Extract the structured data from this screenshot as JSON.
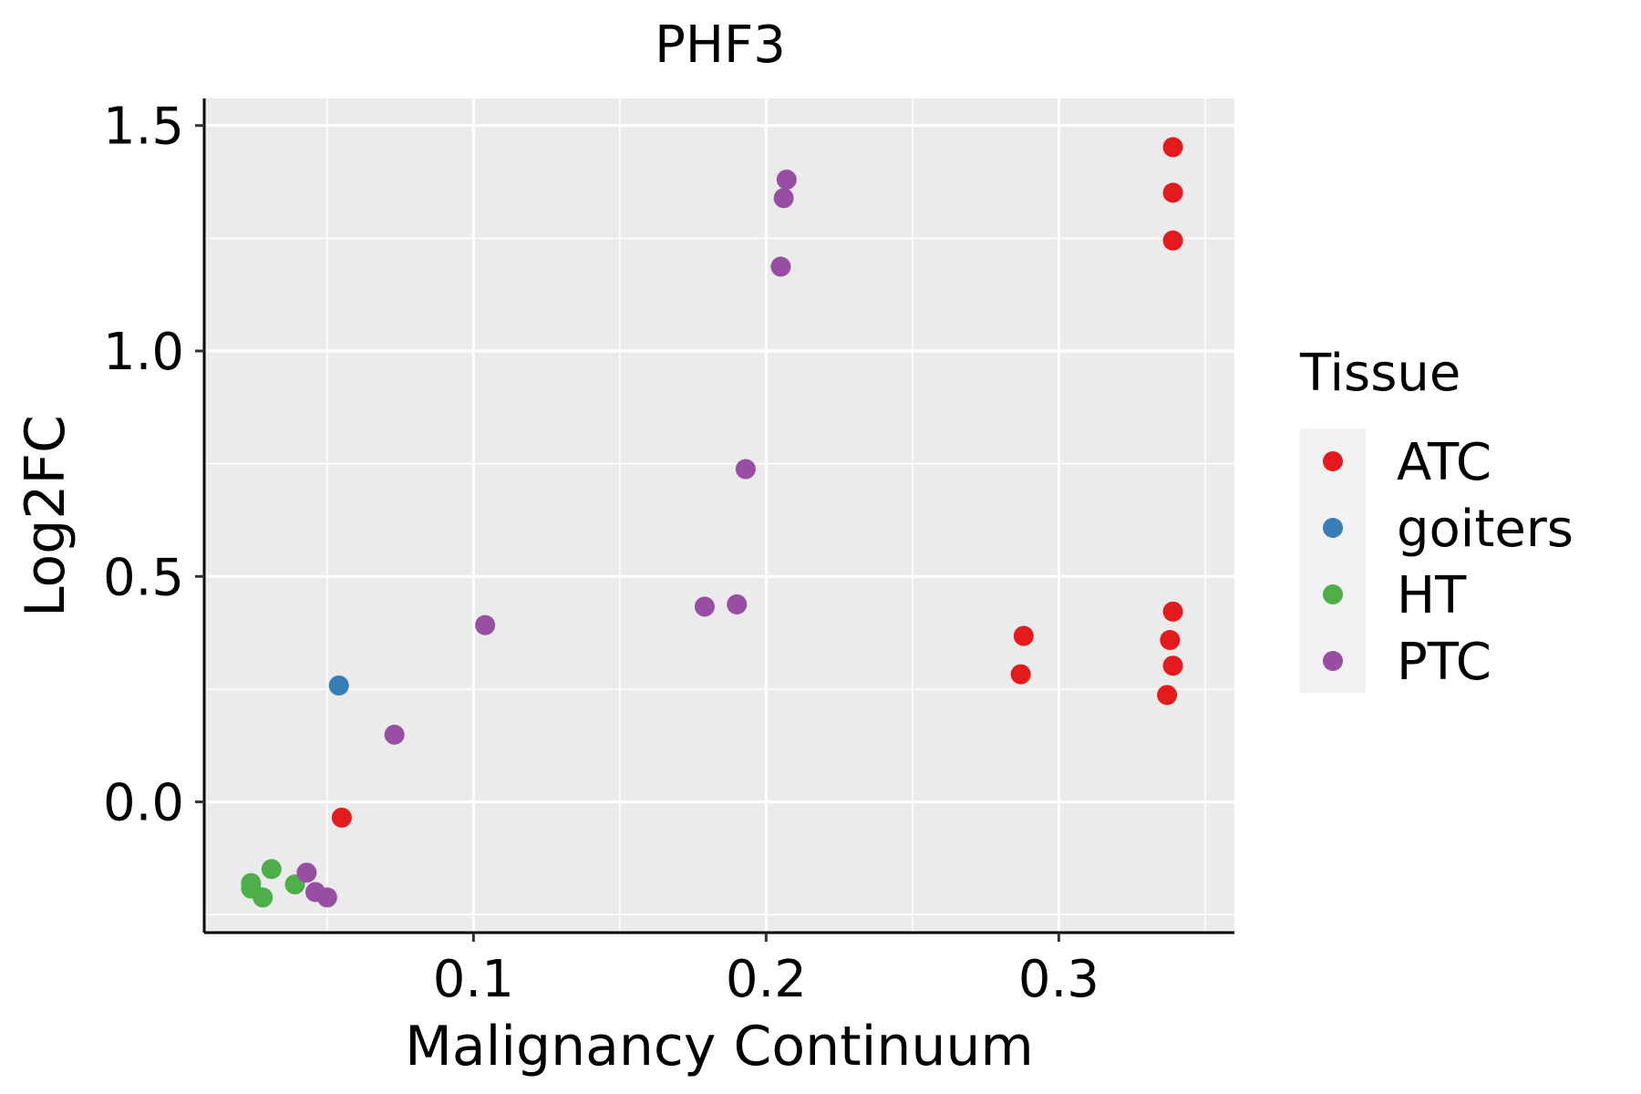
{
  "chart_data": {
    "type": "scatter",
    "title": "PHF3",
    "xlabel": "Malignancy Continuum",
    "ylabel": "Log2FC",
    "xlim": [
      0.008,
      0.36
    ],
    "ylim": [
      -0.29,
      1.56
    ],
    "x_ticks": [
      0.1,
      0.2,
      0.3
    ],
    "x_tick_labels": [
      "0.1",
      "0.2",
      "0.3"
    ],
    "y_ticks": [
      0.0,
      0.5,
      1.0,
      1.5
    ],
    "y_tick_labels": [
      "0.0",
      "0.5",
      "1.0",
      "1.5"
    ],
    "grid": true,
    "legend": {
      "title": "Tissue",
      "position": "right",
      "entries": [
        "ATC",
        "goiters",
        "HT",
        "PTC"
      ]
    },
    "colors": {
      "ATC": "#E41A1C",
      "goiters": "#377EB8",
      "HT": "#4DAF4A",
      "PTC": "#984EA3",
      "panel": "#EBEBEB",
      "grid": "#FFFFFF"
    },
    "series": [
      {
        "name": "ATC",
        "points": [
          {
            "x": 0.055,
            "y": -0.035
          },
          {
            "x": 0.287,
            "y": 0.283
          },
          {
            "x": 0.288,
            "y": 0.368
          },
          {
            "x": 0.337,
            "y": 0.237
          },
          {
            "x": 0.338,
            "y": 0.359
          },
          {
            "x": 0.339,
            "y": 0.302
          },
          {
            "x": 0.339,
            "y": 0.422
          },
          {
            "x": 0.339,
            "y": 1.245
          },
          {
            "x": 0.339,
            "y": 1.351
          },
          {
            "x": 0.339,
            "y": 1.452
          }
        ]
      },
      {
        "name": "goiters",
        "points": [
          {
            "x": 0.054,
            "y": 0.258
          }
        ]
      },
      {
        "name": "HT",
        "points": [
          {
            "x": 0.024,
            "y": -0.18
          },
          {
            "x": 0.024,
            "y": -0.192
          },
          {
            "x": 0.028,
            "y": -0.212
          },
          {
            "x": 0.031,
            "y": -0.149
          },
          {
            "x": 0.039,
            "y": -0.183
          }
        ]
      },
      {
        "name": "PTC",
        "points": [
          {
            "x": 0.043,
            "y": -0.157
          },
          {
            "x": 0.046,
            "y": -0.2
          },
          {
            "x": 0.05,
            "y": -0.212
          },
          {
            "x": 0.073,
            "y": 0.149
          },
          {
            "x": 0.104,
            "y": 0.392
          },
          {
            "x": 0.179,
            "y": 0.433
          },
          {
            "x": 0.19,
            "y": 0.438
          },
          {
            "x": 0.193,
            "y": 0.738
          },
          {
            "x": 0.205,
            "y": 1.187
          },
          {
            "x": 0.206,
            "y": 1.339
          },
          {
            "x": 0.207,
            "y": 1.38
          }
        ]
      }
    ]
  }
}
